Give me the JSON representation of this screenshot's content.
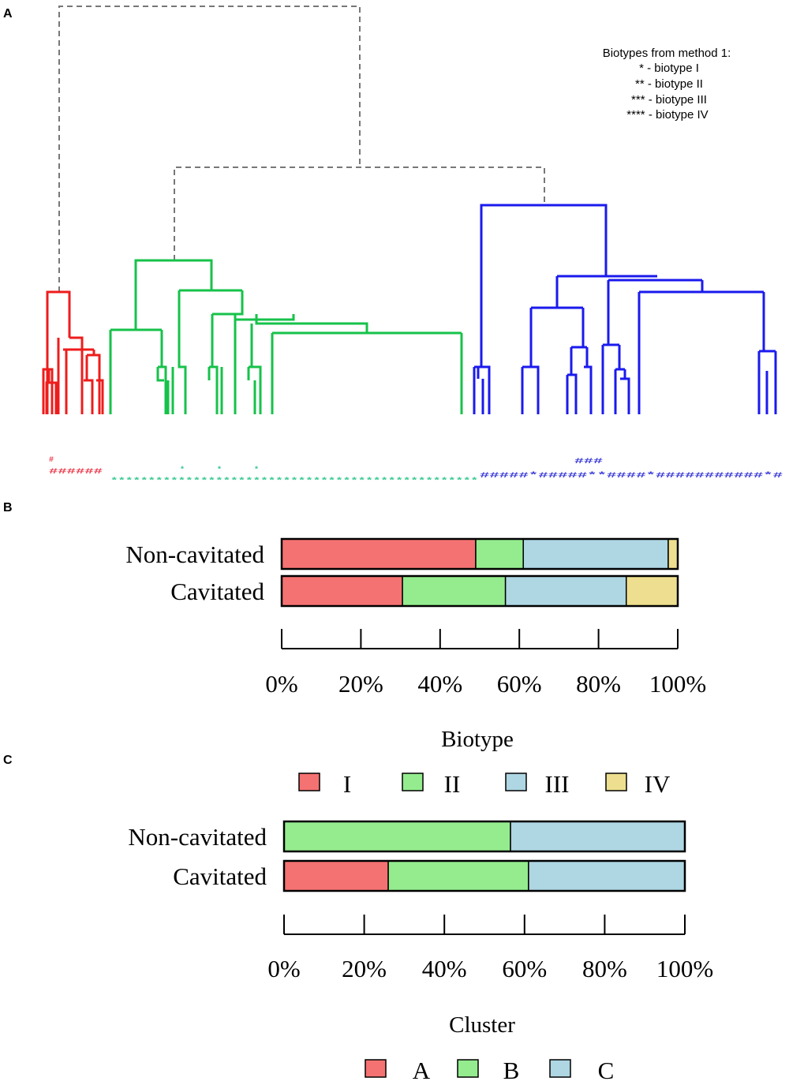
{
  "panels": {
    "a": "A",
    "b": "B",
    "c": "C"
  },
  "dendrogram_legend": {
    "title": "Biotypes from method 1:",
    "entries": [
      "* - biotype I",
      "** - biotype II",
      "*** - biotype III",
      "**** - biotype IV"
    ]
  },
  "colors": {
    "red": "#ee1c1c",
    "green": "#16c24a",
    "blue": "#1a1aee",
    "asterisk_red": "#ec3a4b",
    "asterisk_green": "#33c78e",
    "asterisk_blue": "#3b3bd9",
    "I": "#f57272",
    "II": "#94ec8e",
    "III": "#aed6e3",
    "IV": "#eddf8f",
    "A": "#f57272",
    "B": "#94ec8e",
    "C": "#aed6e3"
  },
  "asterisk_rows": [
    {
      "color": "red",
      "text": "######",
      "top_text": "#"
    },
    {
      "color": "green",
      "text": "*************************************************",
      "top_text": "*  *  *"
    },
    {
      "color": "blue",
      "text": "#####*#####**####*###########*#",
      "top_text": "###"
    }
  ],
  "chart_data": [
    {
      "type": "bar",
      "orientation": "horizontal",
      "stacked": true,
      "percent": true,
      "categories": [
        "Non-cavitated",
        "Cavitated"
      ],
      "series": [
        {
          "name": "I",
          "values": [
            49,
            30.5
          ]
        },
        {
          "name": "II",
          "values": [
            12,
            26
          ]
        },
        {
          "name": "III",
          "values": [
            36.6,
            30.5
          ]
        },
        {
          "name": "IV",
          "values": [
            2.4,
            13
          ]
        }
      ],
      "xticks": [
        "0%",
        "20%",
        "40%",
        "60%",
        "80%",
        "100%"
      ],
      "xlim": [
        0,
        100
      ],
      "xlabel": "",
      "legend_title": "Biotype",
      "legend_position": "bottom"
    },
    {
      "type": "bar",
      "orientation": "horizontal",
      "stacked": true,
      "percent": true,
      "categories": [
        "Non-cavitated",
        "Cavitated"
      ],
      "series": [
        {
          "name": "A",
          "values": [
            0,
            26
          ]
        },
        {
          "name": "B",
          "values": [
            56.5,
            35
          ]
        },
        {
          "name": "C",
          "values": [
            43.5,
            39
          ]
        }
      ],
      "xticks": [
        "0%",
        "20%",
        "40%",
        "60%",
        "80%",
        "100%"
      ],
      "xlim": [
        0,
        100
      ],
      "xlabel": "",
      "legend_title": "Cluster",
      "legend_position": "bottom"
    }
  ]
}
